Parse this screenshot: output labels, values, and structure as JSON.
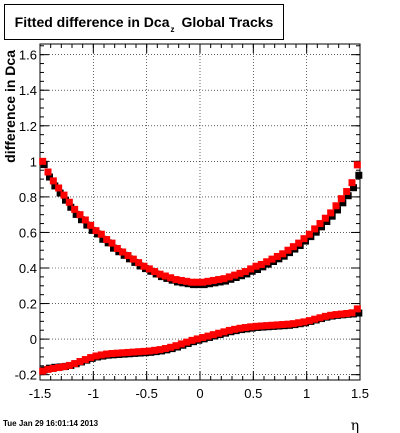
{
  "chart_data": {
    "type": "scatter",
    "title_main": "Fitted difference in Dca",
    "title_sub": "z",
    "title_rest": "Global Tracks",
    "xlabel": "η",
    "ylabel": "difference in Dca",
    "xlim": [
      -1.5,
      1.5
    ],
    "ylim": [
      -0.23,
      1.66
    ],
    "x_ticks": [
      -1.5,
      -1,
      -0.5,
      0,
      0.5,
      1,
      1.5
    ],
    "x_tick_labels": [
      "-1.5",
      "-1",
      "-0.5",
      "0",
      "0.5",
      "1",
      "1.5"
    ],
    "y_ticks": [
      -0.2,
      0,
      0.2,
      0.4,
      0.6,
      0.8,
      1,
      1.2,
      1.4,
      1.6
    ],
    "y_tick_labels": [
      "-0.2",
      "0",
      "0.2",
      "0.4",
      "0.6",
      "0.8",
      "1",
      "1.2",
      "1.4",
      "1.6"
    ],
    "grid": true,
    "series": [
      {
        "color": "#000000",
        "marker": "square",
        "x": [
          -1.475,
          -1.425,
          -1.375,
          -1.325,
          -1.275,
          -1.225,
          -1.175,
          -1.125,
          -1.075,
          -1.025,
          -0.975,
          -0.925,
          -0.875,
          -0.825,
          -0.775,
          -0.725,
          -0.675,
          -0.625,
          -0.575,
          -0.525,
          -0.475,
          -0.425,
          -0.375,
          -0.325,
          -0.275,
          -0.225,
          -0.175,
          -0.125,
          -0.075,
          -0.025,
          0.025,
          0.075,
          0.125,
          0.175,
          0.225,
          0.275,
          0.325,
          0.375,
          0.425,
          0.475,
          0.525,
          0.575,
          0.625,
          0.675,
          0.725,
          0.775,
          0.825,
          0.875,
          0.925,
          0.975,
          1.025,
          1.075,
          1.125,
          1.175,
          1.225,
          1.275,
          1.325,
          1.375,
          1.425,
          1.475
        ],
        "y": [
          0.99,
          0.92,
          0.87,
          0.83,
          0.79,
          0.75,
          0.71,
          0.68,
          0.65,
          0.62,
          0.6,
          0.57,
          0.55,
          0.52,
          0.5,
          0.48,
          0.46,
          0.44,
          0.42,
          0.405,
          0.39,
          0.375,
          0.36,
          0.35,
          0.34,
          0.33,
          0.325,
          0.32,
          0.315,
          0.315,
          0.315,
          0.32,
          0.325,
          0.33,
          0.335,
          0.345,
          0.355,
          0.365,
          0.375,
          0.39,
          0.4,
          0.415,
          0.43,
          0.445,
          0.46,
          0.475,
          0.495,
          0.515,
          0.535,
          0.56,
          0.585,
          0.61,
          0.64,
          0.67,
          0.7,
          0.735,
          0.775,
          0.815,
          0.86,
          0.93
        ]
      },
      {
        "color": "#ff0000",
        "marker": "square",
        "x": [
          -1.475,
          -1.425,
          -1.375,
          -1.325,
          -1.275,
          -1.225,
          -1.175,
          -1.125,
          -1.075,
          -1.025,
          -0.975,
          -0.925,
          -0.875,
          -0.825,
          -0.775,
          -0.725,
          -0.675,
          -0.625,
          -0.575,
          -0.525,
          -0.475,
          -0.425,
          -0.375,
          -0.325,
          -0.275,
          -0.225,
          -0.175,
          -0.125,
          -0.075,
          -0.025,
          0.025,
          0.075,
          0.125,
          0.175,
          0.225,
          0.275,
          0.325,
          0.375,
          0.425,
          0.475,
          0.525,
          0.575,
          0.625,
          0.675,
          0.725,
          0.775,
          0.825,
          0.875,
          0.925,
          0.975,
          1.025,
          1.075,
          1.125,
          1.175,
          1.225,
          1.275,
          1.325,
          1.375,
          1.425,
          1.475
        ],
        "y": [
          1.0,
          0.94,
          0.89,
          0.85,
          0.81,
          0.77,
          0.73,
          0.7,
          0.67,
          0.64,
          0.61,
          0.59,
          0.56,
          0.54,
          0.51,
          0.49,
          0.47,
          0.45,
          0.43,
          0.41,
          0.395,
          0.38,
          0.365,
          0.355,
          0.345,
          0.335,
          0.33,
          0.325,
          0.32,
          0.32,
          0.32,
          0.325,
          0.33,
          0.335,
          0.34,
          0.35,
          0.36,
          0.37,
          0.38,
          0.395,
          0.41,
          0.42,
          0.435,
          0.45,
          0.465,
          0.48,
          0.5,
          0.52,
          0.54,
          0.565,
          0.59,
          0.62,
          0.65,
          0.68,
          0.71,
          0.75,
          0.79,
          0.83,
          0.88,
          0.98
        ]
      },
      {
        "color": "#000000",
        "marker": "square",
        "x": [
          -1.475,
          -1.425,
          -1.375,
          -1.325,
          -1.275,
          -1.225,
          -1.175,
          -1.125,
          -1.075,
          -1.025,
          -0.975,
          -0.925,
          -0.875,
          -0.825,
          -0.775,
          -0.725,
          -0.675,
          -0.625,
          -0.575,
          -0.525,
          -0.475,
          -0.425,
          -0.375,
          -0.325,
          -0.275,
          -0.225,
          -0.175,
          -0.125,
          -0.075,
          -0.025,
          0.025,
          0.075,
          0.125,
          0.175,
          0.225,
          0.275,
          0.325,
          0.375,
          0.425,
          0.475,
          0.525,
          0.575,
          0.625,
          0.675,
          0.725,
          0.775,
          0.825,
          0.875,
          0.925,
          0.975,
          1.025,
          1.075,
          1.125,
          1.175,
          1.225,
          1.275,
          1.325,
          1.375,
          1.425,
          1.475
        ],
        "y": [
          -0.165,
          -0.155,
          -0.15,
          -0.148,
          -0.145,
          -0.14,
          -0.13,
          -0.12,
          -0.11,
          -0.1,
          -0.092,
          -0.087,
          -0.082,
          -0.08,
          -0.078,
          -0.076,
          -0.074,
          -0.072,
          -0.07,
          -0.068,
          -0.066,
          -0.062,
          -0.058,
          -0.052,
          -0.045,
          -0.036,
          -0.026,
          -0.016,
          -0.006,
          0.002,
          0.01,
          0.018,
          0.026,
          0.034,
          0.042,
          0.05,
          0.056,
          0.062,
          0.066,
          0.07,
          0.074,
          0.076,
          0.078,
          0.08,
          0.082,
          0.084,
          0.086,
          0.09,
          0.095,
          0.1,
          0.108,
          0.116,
          0.124,
          0.132,
          0.138,
          0.142,
          0.145,
          0.148,
          0.15,
          0.155
        ]
      },
      {
        "color": "#ff0000",
        "marker": "square",
        "x": [
          -1.475,
          -1.425,
          -1.375,
          -1.325,
          -1.275,
          -1.225,
          -1.175,
          -1.125,
          -1.075,
          -1.025,
          -0.975,
          -0.925,
          -0.875,
          -0.825,
          -0.775,
          -0.725,
          -0.675,
          -0.625,
          -0.575,
          -0.525,
          -0.475,
          -0.425,
          -0.375,
          -0.325,
          -0.275,
          -0.225,
          -0.175,
          -0.125,
          -0.075,
          -0.025,
          0.025,
          0.075,
          0.125,
          0.175,
          0.225,
          0.275,
          0.325,
          0.375,
          0.425,
          0.475,
          0.525,
          0.575,
          0.625,
          0.675,
          0.725,
          0.775,
          0.825,
          0.875,
          0.925,
          0.975,
          1.025,
          1.075,
          1.125,
          1.175,
          1.225,
          1.275,
          1.325,
          1.375,
          1.425,
          1.475
        ],
        "y": [
          -0.18,
          -0.17,
          -0.165,
          -0.16,
          -0.155,
          -0.148,
          -0.138,
          -0.126,
          -0.115,
          -0.104,
          -0.095,
          -0.089,
          -0.084,
          -0.081,
          -0.079,
          -0.077,
          -0.075,
          -0.073,
          -0.071,
          -0.069,
          -0.067,
          -0.063,
          -0.059,
          -0.053,
          -0.046,
          -0.037,
          -0.027,
          -0.017,
          -0.007,
          0.001,
          0.009,
          0.017,
          0.025,
          0.033,
          0.041,
          0.049,
          0.055,
          0.061,
          0.065,
          0.069,
          0.072,
          0.074,
          0.076,
          0.078,
          0.08,
          0.082,
          0.084,
          0.087,
          0.092,
          0.097,
          0.104,
          0.112,
          0.12,
          0.128,
          0.134,
          0.138,
          0.141,
          0.144,
          0.148,
          0.17
        ]
      }
    ]
  },
  "footer": {
    "timestamp": "Tue Jan 29 16:01:14 2013"
  }
}
